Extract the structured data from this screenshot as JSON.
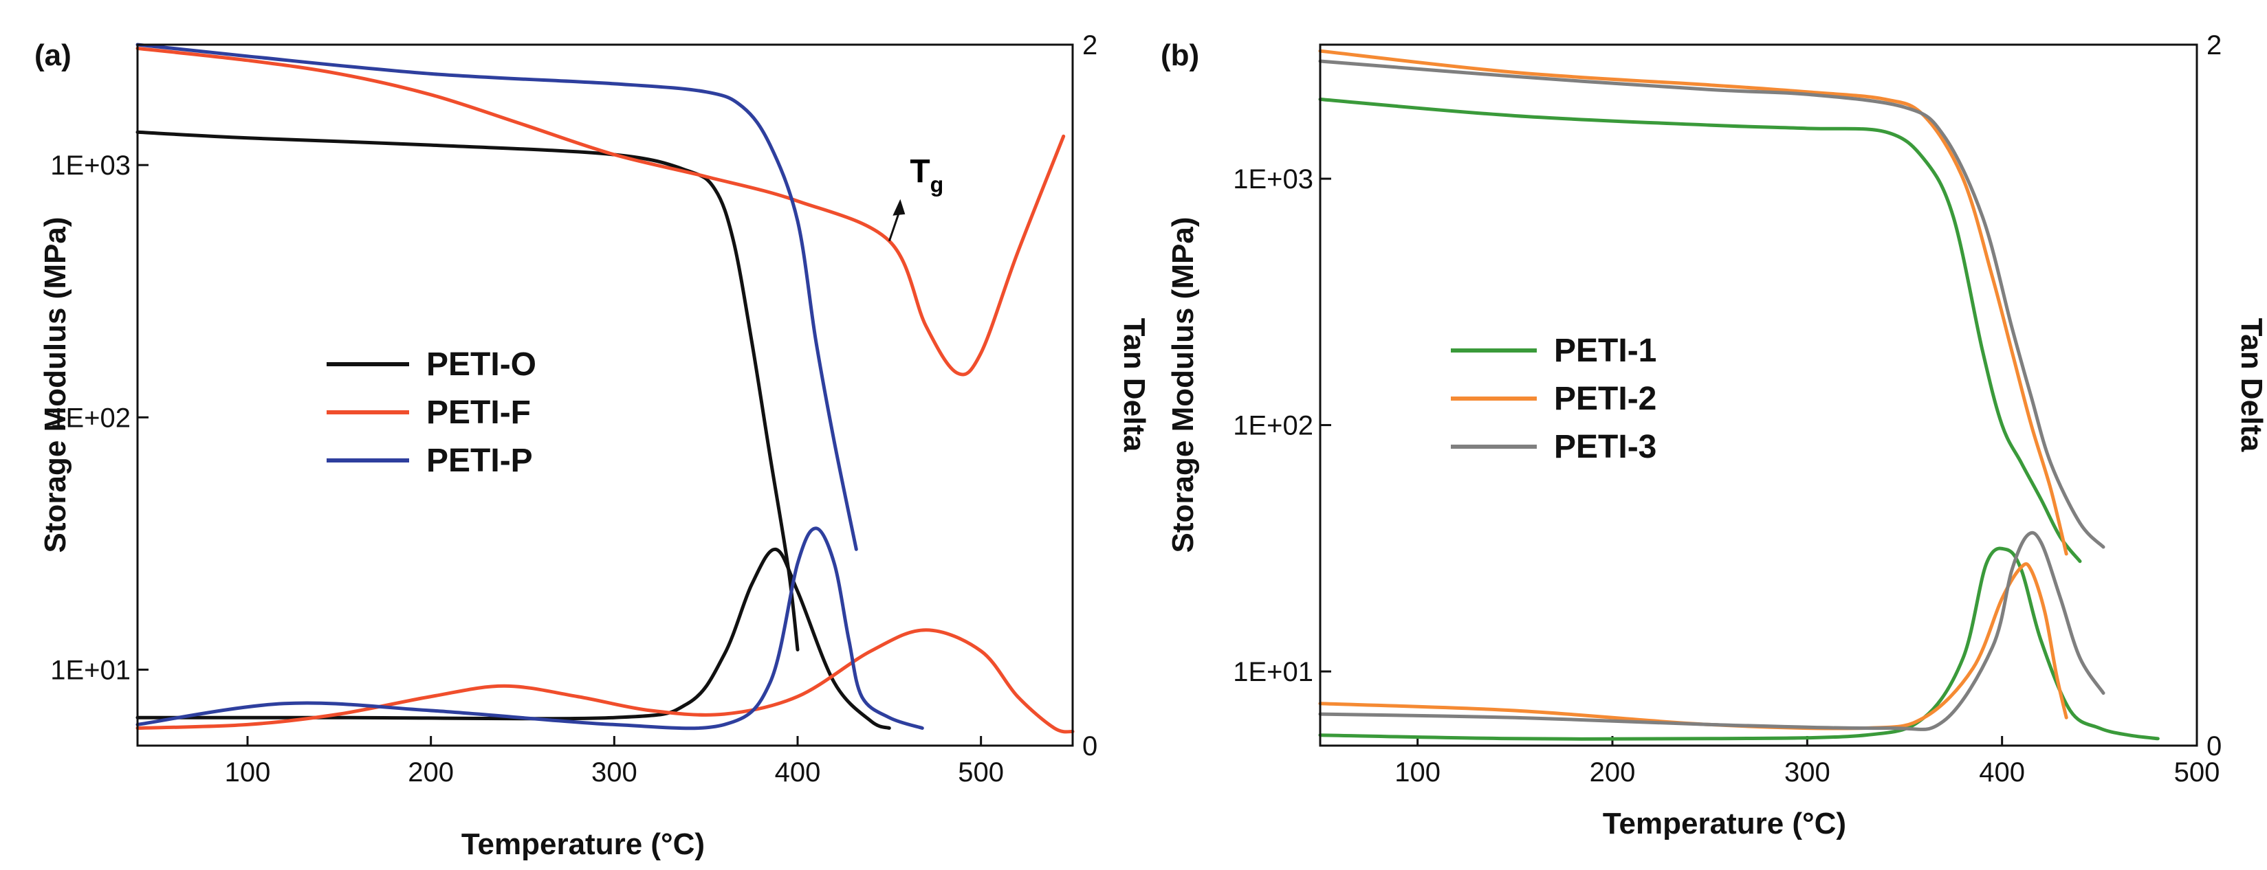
{
  "colors": {
    "black": "#111111",
    "red": "#f04e2c",
    "blue": "#2e3f9e",
    "green": "#3a9a3a",
    "orange": "#f58a33",
    "gray": "#7f7f7f"
  },
  "chart_data": [
    {
      "panel_label": "(a)",
      "type": "line",
      "xlabel": "Temperature (°C)",
      "ylabel_left": "Storage Modulus (MPa)",
      "ylabel_right": "Tan Delta",
      "xlim": [
        40,
        550
      ],
      "xticks": [
        100,
        200,
        300,
        400,
        500
      ],
      "xtick_labels": [
        "100",
        "200",
        "300",
        "400",
        "500"
      ],
      "ylim_left_log": [
        5,
        3000
      ],
      "yticks_left": [
        10,
        100,
        1000
      ],
      "ytick_labels_left": [
        "1E+01",
        "1E+02",
        "1E+03"
      ],
      "ylim_right": [
        0,
        2
      ],
      "yticks_right": [
        0,
        2
      ],
      "ytick_labels_right": [
        "0",
        "2"
      ],
      "annotation": {
        "text": "T",
        "subscript": "g",
        "points_to": [
          450,
          500
        ]
      },
      "series": [
        {
          "name": "PETI-O",
          "color": "#111111",
          "axis": "left",
          "x": [
            40,
            100,
            200,
            300,
            340,
            355,
            365,
            375,
            385,
            395,
            400
          ],
          "y": [
            1350,
            1280,
            1200,
            1100,
            950,
            800,
            500,
            200,
            70,
            25,
            12
          ]
        },
        {
          "name": "PETI-F",
          "color": "#f04e2c",
          "axis": "left",
          "x": [
            40,
            100,
            150,
            200,
            250,
            300,
            350,
            400,
            450,
            470,
            487,
            500,
            520,
            545
          ],
          "y": [
            2900,
            2600,
            2300,
            1900,
            1450,
            1100,
            900,
            720,
            500,
            230,
            150,
            180,
            450,
            1300
          ]
        },
        {
          "name": "PETI-P",
          "color": "#2e3f9e",
          "axis": "left",
          "x": [
            40,
            100,
            200,
            300,
            350,
            370,
            385,
            400,
            410,
            420,
            432
          ],
          "y": [
            3000,
            2700,
            2300,
            2100,
            1950,
            1700,
            1200,
            600,
            200,
            80,
            30
          ]
        },
        {
          "name": "PETI-O tan delta",
          "color": "#111111",
          "axis": "right",
          "x": [
            40,
            150,
            300,
            340,
            360,
            375,
            388,
            400,
            420,
            440,
            450
          ],
          "y": [
            0.08,
            0.08,
            0.08,
            0.12,
            0.26,
            0.46,
            0.56,
            0.44,
            0.18,
            0.07,
            0.05
          ]
        },
        {
          "name": "PETI-F tan delta",
          "color": "#f04e2c",
          "axis": "right",
          "x": [
            40,
            100,
            150,
            200,
            240,
            280,
            320,
            360,
            400,
            440,
            470,
            500,
            520,
            540,
            550
          ],
          "y": [
            0.05,
            0.06,
            0.09,
            0.14,
            0.17,
            0.14,
            0.1,
            0.09,
            0.14,
            0.27,
            0.33,
            0.27,
            0.14,
            0.05,
            0.04
          ]
        },
        {
          "name": "PETI-P tan delta",
          "color": "#2e3f9e",
          "axis": "right",
          "x": [
            40,
            120,
            200,
            300,
            360,
            385,
            400,
            410,
            420,
            428,
            435,
            450,
            468
          ],
          "y": [
            0.06,
            0.12,
            0.1,
            0.06,
            0.06,
            0.18,
            0.52,
            0.62,
            0.52,
            0.3,
            0.14,
            0.08,
            0.05
          ]
        }
      ],
      "legend": [
        "PETI-O",
        "PETI-F",
        "PETI-P"
      ]
    },
    {
      "panel_label": "(b)",
      "type": "line",
      "xlabel": "Temperature (°C)",
      "ylabel_left": "Storage Modulus (MPa)",
      "ylabel_right": "Tan Delta",
      "xlim": [
        50,
        500
      ],
      "xticks": [
        100,
        200,
        300,
        400,
        500
      ],
      "xtick_labels": [
        "100",
        "200",
        "300",
        "400",
        "500"
      ],
      "ylim_left_log": [
        5,
        3500
      ],
      "yticks_left": [
        10,
        100,
        1000
      ],
      "ytick_labels_left": [
        "1E+01",
        "1E+02",
        "1E+03"
      ],
      "ylim_right": [
        0,
        2
      ],
      "yticks_right": [
        0,
        2
      ],
      "ytick_labels_right": [
        "0",
        "2"
      ],
      "series": [
        {
          "name": "PETI-1",
          "color": "#3a9a3a",
          "axis": "left",
          "x": [
            50,
            150,
            250,
            300,
            340,
            360,
            375,
            390,
            400,
            410,
            420,
            430,
            440
          ],
          "y": [
            2100,
            1800,
            1650,
            1600,
            1550,
            1200,
            700,
            200,
            100,
            70,
            50,
            35,
            28
          ]
        },
        {
          "name": "PETI-2",
          "color": "#f58a33",
          "axis": "left",
          "x": [
            50,
            150,
            250,
            300,
            340,
            360,
            380,
            395,
            405,
            415,
            425,
            433
          ],
          "y": [
            3300,
            2700,
            2400,
            2250,
            2100,
            1800,
            1000,
            400,
            200,
            100,
            55,
            30
          ]
        },
        {
          "name": "PETI-3",
          "color": "#7f7f7f",
          "axis": "left",
          "x": [
            50,
            150,
            250,
            300,
            350,
            370,
            390,
            405,
            415,
            425,
            440,
            452
          ],
          "y": [
            3000,
            2600,
            2300,
            2200,
            1950,
            1500,
            700,
            250,
            130,
            70,
            40,
            32
          ]
        },
        {
          "name": "PETI-1 tan delta",
          "color": "#3a9a3a",
          "axis": "right",
          "x": [
            50,
            150,
            250,
            330,
            360,
            380,
            392,
            402,
            410,
            420,
            435,
            450,
            465,
            480
          ],
          "y": [
            0.03,
            0.02,
            0.02,
            0.03,
            0.08,
            0.25,
            0.52,
            0.56,
            0.5,
            0.3,
            0.1,
            0.05,
            0.03,
            0.02
          ]
        },
        {
          "name": "PETI-2 tan delta",
          "color": "#f58a33",
          "axis": "right",
          "x": [
            50,
            150,
            250,
            330,
            360,
            385,
            400,
            410,
            415,
            422,
            428,
            433
          ],
          "y": [
            0.12,
            0.1,
            0.06,
            0.05,
            0.08,
            0.22,
            0.42,
            0.51,
            0.5,
            0.38,
            0.2,
            0.08
          ]
        },
        {
          "name": "PETI-3 tan delta",
          "color": "#7f7f7f",
          "axis": "right",
          "x": [
            50,
            150,
            250,
            340,
            370,
            395,
            405,
            413,
            420,
            430,
            440,
            452
          ],
          "y": [
            0.09,
            0.08,
            0.06,
            0.05,
            0.07,
            0.28,
            0.5,
            0.6,
            0.58,
            0.42,
            0.25,
            0.15
          ]
        }
      ],
      "legend": [
        "PETI-1",
        "PETI-2",
        "PETI-3"
      ]
    }
  ]
}
